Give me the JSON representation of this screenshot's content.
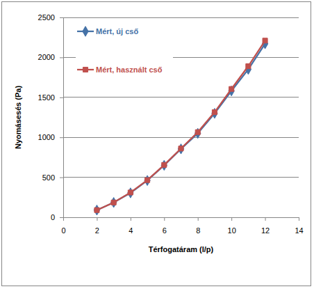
{
  "chart_data": {
    "type": "line",
    "x_label": "Térfogatáram (l/p)",
    "y_label": "Nyomásesés (Pa)",
    "x": [
      2,
      3,
      4,
      5,
      6,
      7,
      8,
      9,
      10,
      11,
      12
    ],
    "series": [
      {
        "name": "Mért, új cső",
        "color": "#4572a7",
        "marker": "diamond",
        "line_style": "solid",
        "values": [
          90,
          185,
          305,
          460,
          650,
          855,
          1050,
          1300,
          1580,
          1850,
          2170
        ]
      },
      {
        "name": "Mért, használt cső",
        "color": "#c0504d",
        "marker": "square",
        "line_style": "solid",
        "values": [
          90,
          185,
          310,
          465,
          655,
          860,
          1065,
          1315,
          1605,
          1890,
          2210
        ]
      }
    ],
    "xlim": [
      0,
      14
    ],
    "xticks": [
      0,
      2,
      4,
      6,
      8,
      10,
      12,
      14
    ],
    "ylim": [
      0,
      2500
    ],
    "yticks": [
      0,
      500,
      1000,
      1500,
      2000,
      2500
    ],
    "grid": true,
    "legend": "upper left"
  }
}
